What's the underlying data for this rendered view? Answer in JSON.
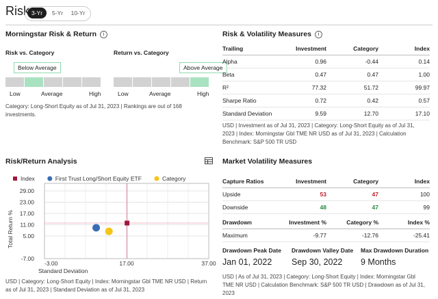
{
  "header": {
    "title": "Risk",
    "tabs": [
      "3-Yr",
      "5-Yr",
      "10-Yr"
    ]
  },
  "risk_return": {
    "title": "Morningstar Risk & Return",
    "scales": [
      {
        "label": "Risk vs. Category",
        "rating": "Below Average"
      },
      {
        "label": "Return vs. Category",
        "rating": "Above Average"
      }
    ],
    "scale_labels": [
      "Low",
      "Average",
      "High"
    ],
    "footnote": "Category: Long-Short Equity as of Jul 31, 2023 | Rankings are out of 168 investments."
  },
  "risk_volatility": {
    "title": "Risk & Volatility Measures",
    "columns": [
      "Trailing",
      "Investment",
      "Category",
      "Index"
    ],
    "rows": [
      [
        "Alpha",
        "0.96",
        "-0.44",
        "0.14"
      ],
      [
        "Beta",
        "0.47",
        "0.47",
        "1.00"
      ],
      [
        "R²",
        "77.32",
        "51.72",
        "99.97"
      ],
      [
        "Sharpe Ratio",
        "0.72",
        "0.42",
        "0.57"
      ],
      [
        "Standard Deviation",
        "9.59",
        "12.70",
        "17.10"
      ]
    ],
    "footnote": "USD | Investment as of Jul 31, 2023 | Category: Long-Short Equity as of Jul 31, 2023 | Index: Morningstar Gbl TME NR USD as of Jul 31, 2023 | Calculation Benchmark: S&P 500 TR USD"
  },
  "risk_return_analysis": {
    "title": "Risk/Return Analysis",
    "chart": {
      "type": "scatter",
      "series": [
        {
          "name": "Index",
          "color": "#a0193c",
          "marker": "square",
          "x": [
            17.1
          ],
          "values": [
            11.9
          ]
        },
        {
          "name": "First Trust Long/Short Equity ETF",
          "color": "#3c6db3",
          "marker": "circle",
          "x": [
            9.59
          ],
          "values": [
            9.4
          ]
        },
        {
          "name": "Category",
          "color": "#f5c518",
          "marker": "circle",
          "x": [
            12.7
          ],
          "values": [
            7.5
          ]
        }
      ],
      "xlim": [
        -3,
        37
      ],
      "xticks": [
        {
          "value": -3,
          "label": "-3.00"
        },
        {
          "value": 17,
          "label": "17.00"
        },
        {
          "value": 37,
          "label": "37.00"
        }
      ],
      "ylim": [
        -7,
        33
      ],
      "yticks": [
        {
          "value": 29,
          "label": "29.00"
        },
        {
          "value": 23,
          "label": "23.00"
        },
        {
          "value": 17,
          "label": "17.00"
        },
        {
          "value": 11,
          "label": "11.00"
        },
        {
          "value": 5,
          "label": "5.00"
        },
        {
          "value": -7,
          "label": "-7.00"
        }
      ],
      "xlabel": "Standard Deviation",
      "ylabel": "Total Return %"
    },
    "footnote": "USD | Category: Long-Short Equity | Index: Morningstar Gbl TME NR USD | Return as of Jul 31, 2023 | Standard Deviation as of Jul 31, 2023"
  },
  "market_volatility": {
    "title": "Market Volatility Measures",
    "capture": {
      "columns": [
        "Capture Ratios",
        "Investment",
        "Category",
        "Index"
      ],
      "rows": [
        [
          "Upside",
          "53",
          "47",
          "100"
        ],
        [
          "Downside",
          "48",
          "47",
          "99"
        ]
      ]
    },
    "drawdown": {
      "columns": [
        "Drawdown",
        "Investment %",
        "Category %",
        "Index %"
      ],
      "rows": [
        [
          "Maximum",
          "-9.77",
          "-12.76",
          "-25.41"
        ]
      ]
    },
    "dates": [
      {
        "label": "Drawdown Peak Date",
        "value": "Jan 01, 2022"
      },
      {
        "label": "Drawdown Valley Date",
        "value": "Sep 30, 2022"
      },
      {
        "label": "Max Drawdown Duration",
        "value": "9 Months"
      }
    ],
    "footnote": "USD | As of Jul 31, 2023 | Category: Long-Short Equity | Index: Morningstar Gbl TME NR USD | Calculation Benchmark: S&P 500 TR USD | Drawdown as of Jul 31, 2023"
  }
}
